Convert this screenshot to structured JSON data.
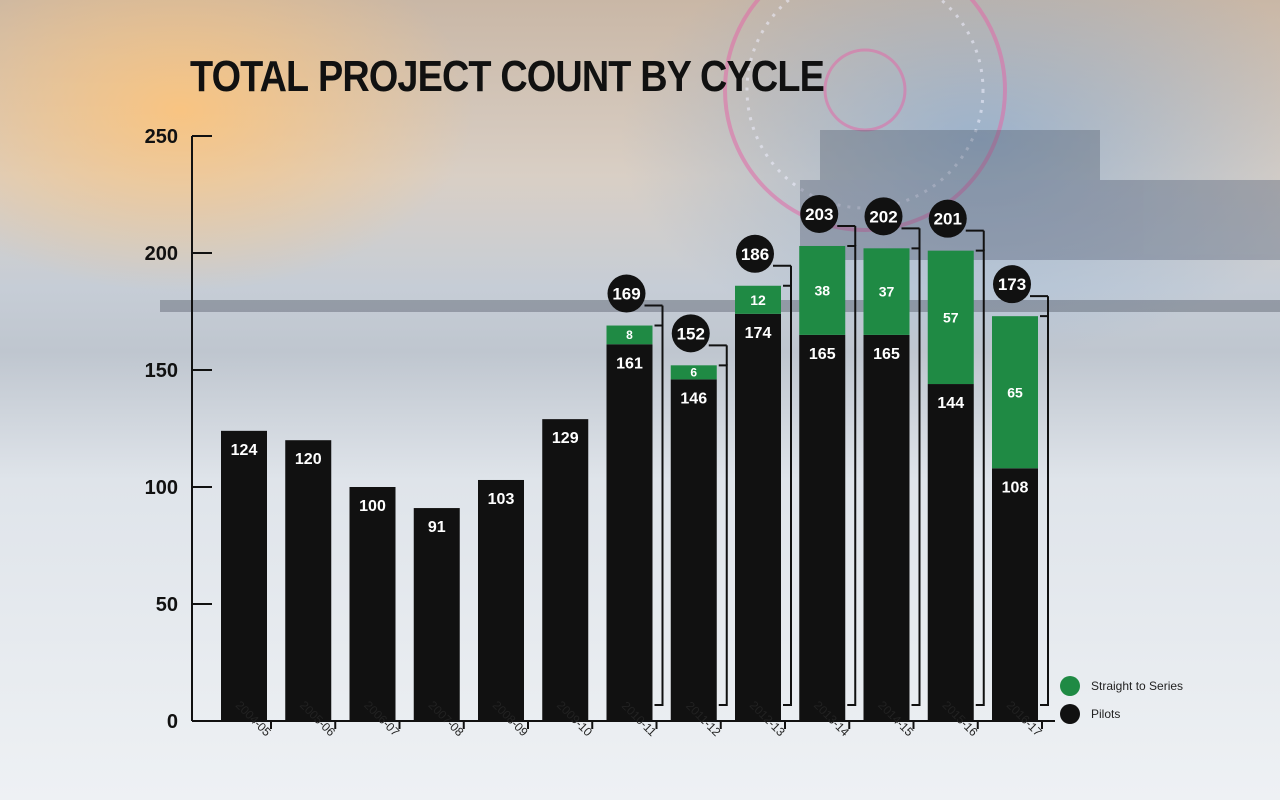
{
  "title": {
    "bold": "TOTAL",
    "rest": " PROJECT COUNT BY CYCLE"
  },
  "colors": {
    "pilots": "#111111",
    "straight": "#1f8a44",
    "axis": "#111111",
    "label": "#ffffff"
  },
  "legend": [
    {
      "label": "Straight to Series",
      "color": "#1f8a44"
    },
    {
      "label": "Pilots",
      "color": "#111111"
    }
  ],
  "chart_data": {
    "type": "bar",
    "stacked": true,
    "title": "TOTAL PROJECT COUNT BY CYCLE",
    "xlabel": "",
    "ylabel": "",
    "ylim": [
      0,
      250
    ],
    "yticks": [
      0,
      50,
      100,
      150,
      200,
      250
    ],
    "categories": [
      "2004-05",
      "2005-06",
      "2006-07",
      "2007-08",
      "2008-09",
      "2009-10",
      "2010-11",
      "2011-12",
      "2012-13",
      "2013-14",
      "2014-15",
      "2015-16",
      "2016-17"
    ],
    "series": [
      {
        "name": "Pilots",
        "values": [
          124,
          120,
          100,
          91,
          103,
          129,
          161,
          146,
          174,
          165,
          165,
          144,
          108
        ]
      },
      {
        "name": "Straight to Series",
        "values": [
          0,
          0,
          0,
          0,
          0,
          0,
          8,
          6,
          12,
          38,
          37,
          57,
          65
        ]
      }
    ],
    "totals": [
      null,
      null,
      null,
      null,
      null,
      null,
      169,
      152,
      186,
      203,
      202,
      201,
      173
    ],
    "legend_position": "bottom-right"
  }
}
